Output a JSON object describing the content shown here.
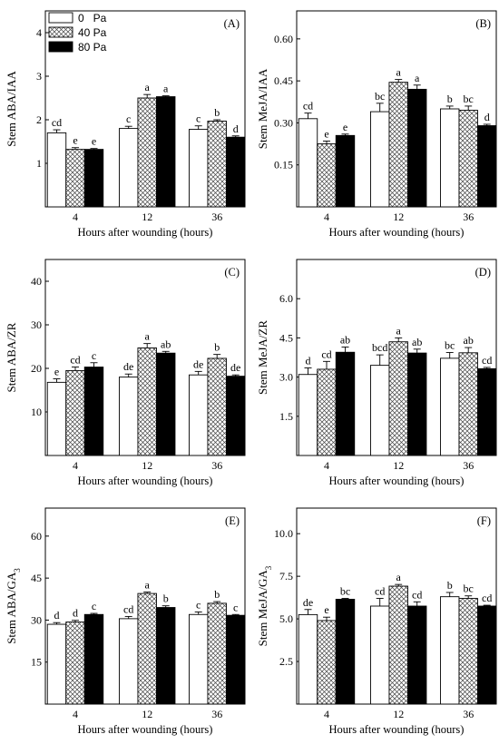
{
  "series_names": [
    "0   Pa",
    "40 Pa",
    "80 Pa"
  ],
  "xlabel": "Hours after wounding (hours)",
  "categories": [
    "4",
    "12",
    "36"
  ],
  "chart_data": [
    {
      "type": "bar",
      "panel": "(A)",
      "ylabel": "Stem ABA/IAA",
      "ylabel_sub": "",
      "ylim": [
        0,
        4.5
      ],
      "yticks": [
        1,
        2,
        3,
        4
      ],
      "ytick_labels": [
        "1",
        "2",
        "3",
        "4"
      ],
      "legend": true,
      "series": [
        {
          "values": [
            1.7,
            1.8,
            1.78
          ],
          "errors": [
            0.07,
            0.05,
            0.08
          ],
          "letters": [
            "cd",
            "c",
            "c"
          ]
        },
        {
          "values": [
            1.32,
            2.5,
            1.97
          ],
          "errors": [
            0.04,
            0.08,
            0.03
          ],
          "letters": [
            "e",
            "a",
            "b"
          ]
        },
        {
          "values": [
            1.32,
            2.53,
            1.6
          ],
          "errors": [
            0.02,
            0.02,
            0.03
          ],
          "letters": [
            "e",
            "a",
            "d"
          ]
        }
      ]
    },
    {
      "type": "bar",
      "panel": "(B)",
      "ylabel": "Stem MeJA/IAA",
      "ylabel_sub": "",
      "ylim": [
        0,
        0.7
      ],
      "yticks": [
        0.15,
        0.3,
        0.45,
        0.6
      ],
      "ytick_labels": [
        "0.15",
        "0.30",
        "0.45",
        "0.60"
      ],
      "legend": false,
      "series": [
        {
          "values": [
            0.315,
            0.34,
            0.35
          ],
          "errors": [
            0.02,
            0.03,
            0.01
          ],
          "letters": [
            "cd",
            "bc",
            "b"
          ]
        },
        {
          "values": [
            0.225,
            0.445,
            0.345
          ],
          "errors": [
            0.01,
            0.01,
            0.015
          ],
          "letters": [
            "e",
            "a",
            "bc"
          ]
        },
        {
          "values": [
            0.255,
            0.42,
            0.29
          ],
          "errors": [
            0.005,
            0.015,
            0.005
          ],
          "letters": [
            "e",
            "a",
            "d"
          ]
        }
      ]
    },
    {
      "type": "bar",
      "panel": "(C)",
      "ylabel": "Stem ABA/ZR",
      "ylabel_sub": "",
      "ylim": [
        0,
        45
      ],
      "yticks": [
        10,
        20,
        30,
        40
      ],
      "ytick_labels": [
        "10",
        "20",
        "30",
        "40"
      ],
      "legend": false,
      "series": [
        {
          "values": [
            16.8,
            18.0,
            18.5
          ],
          "errors": [
            0.8,
            0.7,
            0.8
          ],
          "letters": [
            "e",
            "de",
            "de"
          ]
        },
        {
          "values": [
            19.5,
            24.7,
            22.3
          ],
          "errors": [
            0.8,
            1.0,
            0.9
          ],
          "letters": [
            "cd",
            "a",
            "b"
          ]
        },
        {
          "values": [
            20.3,
            23.5,
            18.2
          ],
          "errors": [
            1.0,
            0.4,
            0.3
          ],
          "letters": [
            "c",
            "ab",
            "de"
          ]
        }
      ]
    },
    {
      "type": "bar",
      "panel": "(D)",
      "ylabel": "Stem MeJA/ZR",
      "ylabel_sub": "",
      "ylim": [
        0,
        7.5
      ],
      "yticks": [
        1.5,
        3.0,
        4.5,
        6.0
      ],
      "ytick_labels": [
        "1.5",
        "3.0",
        "4.5",
        "6.0"
      ],
      "legend": false,
      "series": [
        {
          "values": [
            3.1,
            3.45,
            3.72
          ],
          "errors": [
            0.25,
            0.4,
            0.22
          ],
          "letters": [
            "d",
            "bcd",
            "bc"
          ]
        },
        {
          "values": [
            3.3,
            4.35,
            3.93
          ],
          "errors": [
            0.3,
            0.15,
            0.2
          ],
          "letters": [
            "cd",
            "a",
            "ab"
          ]
        },
        {
          "values": [
            3.95,
            3.92,
            3.32
          ],
          "errors": [
            0.2,
            0.15,
            0.05
          ],
          "letters": [
            "ab",
            "ab",
            "cd"
          ]
        }
      ]
    },
    {
      "type": "bar",
      "panel": "(E)",
      "ylabel": "Stem ABA/GA",
      "ylabel_sub": "3",
      "ylim": [
        0,
        70
      ],
      "yticks": [
        15,
        30,
        45,
        60
      ],
      "ytick_labels": [
        "15",
        "30",
        "45",
        "60"
      ],
      "legend": false,
      "series": [
        {
          "values": [
            28.5,
            30.5,
            32.0
          ],
          "errors": [
            0.6,
            0.8,
            0.9
          ],
          "letters": [
            "d",
            "cd",
            "c"
          ]
        },
        {
          "values": [
            29.3,
            39.5,
            36.0
          ],
          "errors": [
            0.6,
            0.5,
            0.6
          ],
          "letters": [
            "d",
            "a",
            "b"
          ]
        },
        {
          "values": [
            32.0,
            34.5,
            31.7
          ],
          "errors": [
            0.4,
            0.6,
            0.3
          ],
          "letters": [
            "c",
            "b",
            "c"
          ]
        }
      ]
    },
    {
      "type": "bar",
      "panel": "(F)",
      "ylabel": "Stem MeJA/GA",
      "ylabel_sub": "3",
      "ylim": [
        0,
        11.5
      ],
      "yticks": [
        2.5,
        5.0,
        7.5,
        10.0
      ],
      "ytick_labels": [
        "2.5",
        "5.0",
        "7.5",
        "10.0"
      ],
      "legend": false,
      "series": [
        {
          "values": [
            5.25,
            5.75,
            6.3
          ],
          "errors": [
            0.3,
            0.45,
            0.25
          ],
          "letters": [
            "de",
            "cd",
            "b"
          ]
        },
        {
          "values": [
            4.9,
            6.92,
            6.2
          ],
          "errors": [
            0.2,
            0.1,
            0.15
          ],
          "letters": [
            "e",
            "a",
            "bc"
          ]
        },
        {
          "values": [
            6.15,
            5.75,
            5.75
          ],
          "errors": [
            0.05,
            0.25,
            0.05
          ],
          "letters": [
            "bc",
            "cd",
            "cd"
          ]
        }
      ]
    }
  ]
}
